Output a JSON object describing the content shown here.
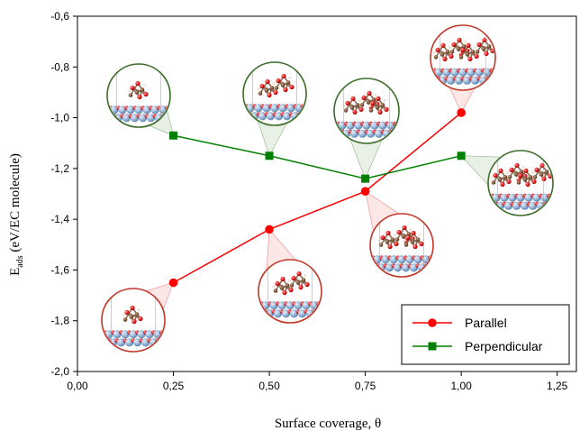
{
  "chart_data": {
    "type": "line",
    "xlabel": "Surface coverage, θ",
    "ylabel": "E",
    "ylabel_sub": "ads",
    "ylabel_rest": " (eV/EC molecule)",
    "xlim": [
      0,
      1.3
    ],
    "ylim": [
      -2.0,
      -0.6
    ],
    "xticks": [
      0,
      0.25,
      0.5,
      0.75,
      1.0,
      1.25
    ],
    "xtick_labels": [
      "0,00",
      "0,25",
      "0,50",
      "0,75",
      "1,00",
      "1,25"
    ],
    "yticks": [
      -2.0,
      -1.8,
      -1.6,
      -1.4,
      -1.2,
      -1.0,
      -0.8,
      -0.6
    ],
    "ytick_labels": [
      "-2,0",
      "-1,8",
      "-1,6",
      "-1,4",
      "-1,2",
      "-1,0",
      "-0,8",
      "-0,6"
    ],
    "grid": false,
    "legend_position": "bottom-right",
    "series": [
      {
        "name": "Parallel",
        "color": "#ff0000",
        "marker": "circle",
        "x": [
          0.25,
          0.5,
          0.75,
          1.0
        ],
        "y": [
          -1.65,
          -1.44,
          -1.29,
          -0.98
        ]
      },
      {
        "name": "Perpendicular",
        "color": "#008000",
        "marker": "square",
        "x": [
          0.25,
          0.5,
          0.75,
          1.0
        ],
        "y": [
          -1.07,
          -1.15,
          -1.24,
          -1.15
        ]
      }
    ],
    "insets": [
      {
        "series": "Parallel",
        "x": 0.25,
        "y": -1.65,
        "color": "#c0392b",
        "molecules": 1
      },
      {
        "series": "Parallel",
        "x": 0.5,
        "y": -1.44,
        "color": "#c0392b",
        "molecules": 2
      },
      {
        "series": "Parallel",
        "x": 0.75,
        "y": -1.29,
        "color": "#c0392b",
        "molecules": 3
      },
      {
        "series": "Parallel",
        "x": 1.0,
        "y": -0.98,
        "color": "#c0392b",
        "molecules": 4
      },
      {
        "series": "Perpendicular",
        "x": 0.25,
        "y": -1.07,
        "color": "#3c6e2a",
        "molecules": 1
      },
      {
        "series": "Perpendicular",
        "x": 0.5,
        "y": -1.15,
        "color": "#3c6e2a",
        "molecules": 2
      },
      {
        "series": "Perpendicular",
        "x": 0.75,
        "y": -1.24,
        "color": "#3c6e2a",
        "molecules": 3
      },
      {
        "series": "Perpendicular",
        "x": 1.0,
        "y": -1.15,
        "color": "#3c6e2a",
        "molecules": 4
      }
    ]
  }
}
